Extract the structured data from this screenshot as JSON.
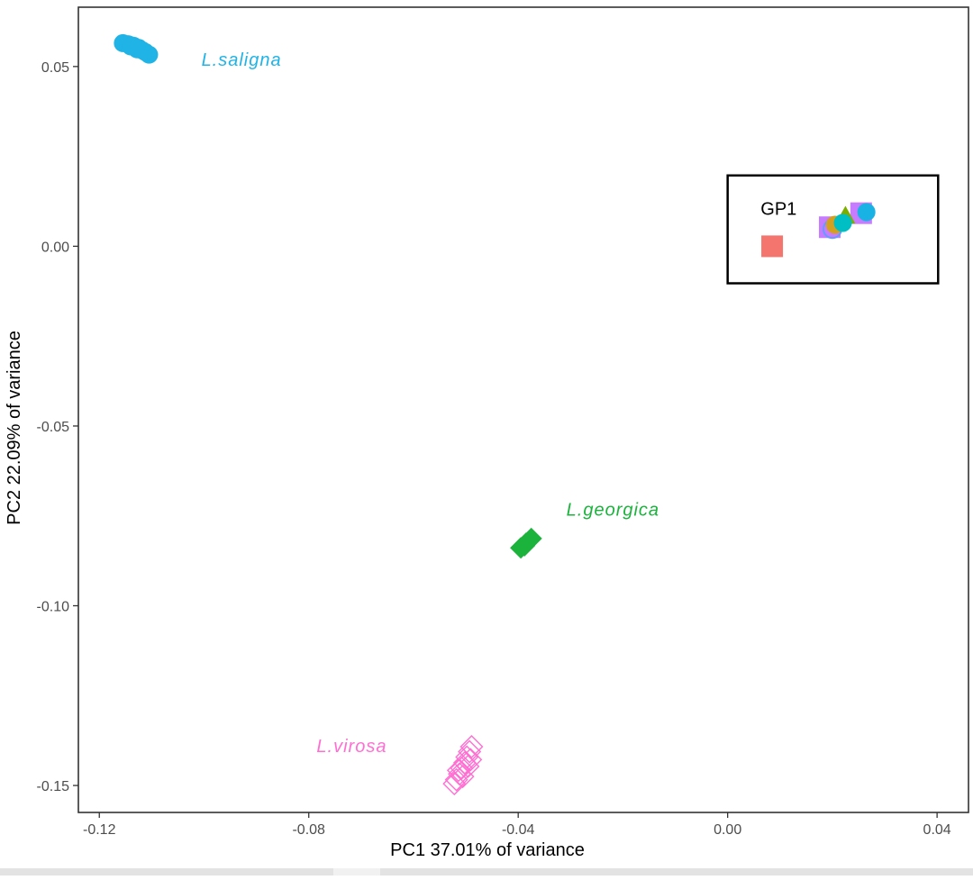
{
  "chart_data": {
    "type": "scatter",
    "title": "",
    "xlabel": "PC1 37.01% of variance",
    "ylabel": "PC2 22.09% of variance",
    "xlim": [
      -0.124,
      0.046
    ],
    "ylim": [
      -0.1575,
      0.0665
    ],
    "xticks": [
      -0.12,
      -0.08,
      -0.04,
      0.0,
      0.04
    ],
    "xtick_labels": [
      "-0.12",
      "-0.08",
      "-0.04",
      "0.00",
      "0.04"
    ],
    "yticks": [
      0.05,
      0.0,
      -0.05,
      -0.1,
      -0.15
    ],
    "ytick_labels": [
      "0.05",
      "0.00",
      "-0.05",
      "-0.10",
      "-0.15"
    ],
    "grid": false,
    "series": [
      {
        "name": "L.saligna",
        "color": "#1fb3e6",
        "marker": "filled-circle",
        "points": [
          [
            -0.1155,
            0.0565
          ],
          [
            -0.1145,
            0.0562
          ],
          [
            -0.1135,
            0.0558
          ],
          [
            -0.1125,
            0.0552
          ],
          [
            -0.1118,
            0.0545
          ],
          [
            -0.1112,
            0.054
          ],
          [
            -0.1105,
            0.0533
          ],
          [
            -0.1128,
            0.0548
          ],
          [
            -0.114,
            0.0556
          ]
        ]
      },
      {
        "name": "L.georgica",
        "color": "#1bb33c",
        "marker": "filled-diamond",
        "points": [
          [
            -0.0395,
            -0.0839
          ],
          [
            -0.0385,
            -0.0826
          ],
          [
            -0.0375,
            -0.0813
          ],
          [
            -0.0388,
            -0.0833
          ]
        ]
      },
      {
        "name": "L.virosa",
        "color": "#ff6fd2",
        "marker": "open-diamond",
        "points": [
          [
            -0.0522,
            -0.1495
          ],
          [
            -0.0518,
            -0.1484
          ],
          [
            -0.0512,
            -0.1468
          ],
          [
            -0.0508,
            -0.1452
          ],
          [
            -0.0502,
            -0.1437
          ],
          [
            -0.0498,
            -0.1421
          ],
          [
            -0.0493,
            -0.1406
          ],
          [
            -0.0489,
            -0.1392
          ],
          [
            -0.0506,
            -0.1475
          ],
          [
            -0.0496,
            -0.1447
          ],
          [
            -0.0514,
            -0.1458
          ],
          [
            -0.0491,
            -0.1428
          ]
        ]
      }
    ],
    "gp1_cluster": [
      {
        "shape": "filled-square",
        "color": "#f4756e",
        "x": 0.0085,
        "y": 0.0
      },
      {
        "shape": "filled-square",
        "color": "#c77cff",
        "x": 0.0195,
        "y": 0.0053
      },
      {
        "shape": "filled-square",
        "color": "#c77cff",
        "x": 0.0255,
        "y": 0.0092
      },
      {
        "shape": "open-circle",
        "color": "#619cff",
        "x": 0.02,
        "y": 0.0048
      },
      {
        "shape": "filled-circle",
        "color": "#d4a020",
        "x": 0.0205,
        "y": 0.006
      },
      {
        "shape": "filled-triangle",
        "color": "#7cae00",
        "x": 0.0225,
        "y": 0.0085
      },
      {
        "shape": "filled-circle",
        "color": "#00bfc4",
        "x": 0.022,
        "y": 0.0065
      },
      {
        "shape": "filled-circle",
        "color": "#19b2e4",
        "x": 0.0265,
        "y": 0.0095
      }
    ],
    "annotations": [
      {
        "id": "saligna",
        "text": "L.saligna",
        "color": "#1fb3e6",
        "x": -0.1005,
        "y": 0.0502
      },
      {
        "id": "georgica",
        "text": "L.georgica",
        "color": "#1bb33c",
        "x": -0.0308,
        "y": -0.0749
      },
      {
        "id": "virosa",
        "text": "L.virosa",
        "color": "#ff6fd2",
        "x": -0.0785,
        "y": -0.1407
      },
      {
        "id": "gp1",
        "text": "GP1",
        "color": "#000000",
        "x": 0.0063,
        "y": 0.0087
      }
    ],
    "highlight_box": {
      "x0": 0.0,
      "x1": 0.0402,
      "y0": -0.0103,
      "y1": 0.0197
    }
  }
}
